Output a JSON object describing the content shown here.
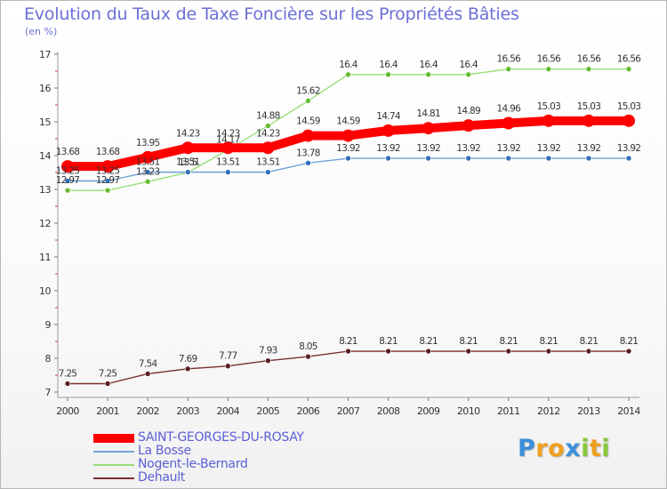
{
  "chart_data": {
    "type": "line",
    "title": "Evolution du Taux de Taxe Foncière sur les Propriétés Bâties",
    "ylabel": "(en %)",
    "xlabel": "",
    "ylim": [
      7,
      17
    ],
    "yticks": [
      7,
      8,
      9,
      10,
      11,
      12,
      13,
      14,
      15,
      16,
      17
    ],
    "x": [
      2000,
      2001,
      2002,
      2003,
      2004,
      2005,
      2006,
      2007,
      2008,
      2009,
      2010,
      2011,
      2012,
      2013,
      2014
    ],
    "grid": false,
    "legend_position": "bottom-left",
    "series": [
      {
        "name": "SAINT-GEORGES-DU-ROSAY",
        "color": "#ff0000",
        "marker_color": "#ff0000",
        "values": [
          13.68,
          13.68,
          13.95,
          14.23,
          14.23,
          14.23,
          14.59,
          14.59,
          14.74,
          14.81,
          14.89,
          14.96,
          15.03,
          15.03,
          15.03
        ],
        "labels": [
          "13.68",
          "13.68",
          "13.95",
          "14.23",
          "14.23",
          "14.23",
          "14.59",
          "14.59",
          "14.74",
          "14.81",
          "14.89",
          "14.96",
          "15.03",
          "15.03",
          "15.03"
        ]
      },
      {
        "name": "La Bosse",
        "color": "#6fa2d6",
        "marker_color": "#2f6fb8",
        "values": [
          13.25,
          13.25,
          13.51,
          13.51,
          13.51,
          13.51,
          13.78,
          13.92,
          13.92,
          13.92,
          13.92,
          13.92,
          13.92,
          13.92,
          13.92
        ],
        "labels": [
          "13.25",
          "13.25",
          "13.51",
          "13.51",
          "13.51",
          "13.51",
          "13.78",
          "13.92",
          "13.92",
          "13.92",
          "13.92",
          "13.92",
          "13.92",
          "13.92",
          "13.92"
        ]
      },
      {
        "name": "Nogent-le-Bernard",
        "color": "#99dd77",
        "marker_color": "#66bb33",
        "values": [
          12.97,
          12.97,
          13.23,
          13.5,
          14.17,
          14.88,
          15.62,
          16.4,
          16.4,
          16.4,
          16.4,
          16.56,
          16.56,
          16.56,
          16.56
        ],
        "labels": [
          "12.97",
          "12.97",
          "13.23",
          "13.5",
          "14.17",
          "14.88",
          "15.62",
          "16.4",
          "16.4",
          "16.4",
          "16.4",
          "16.56",
          "16.56",
          "16.56",
          "16.56"
        ]
      },
      {
        "name": "Dehault",
        "color": "#7a2f2f",
        "marker_color": "#5a1f1f",
        "values": [
          7.25,
          7.25,
          7.54,
          7.69,
          7.77,
          7.93,
          8.05,
          8.21,
          8.21,
          8.21,
          8.21,
          8.21,
          8.21,
          8.21,
          8.21
        ],
        "labels": [
          "7.25",
          "7.25",
          "7.54",
          "7.69",
          "7.77",
          "7.93",
          "8.05",
          "8.21",
          "8.21",
          "8.21",
          "8.21",
          "8.21",
          "8.21",
          "8.21",
          "8.21"
        ]
      }
    ]
  },
  "brand": {
    "letters": [
      "P",
      "r",
      "o",
      "x",
      "i",
      "t",
      "i"
    ],
    "colors": [
      "#3d8fd8",
      "#f0a020",
      "#f0a020",
      "#3d8fd8",
      "#88c83a",
      "#f0a020",
      "#88c83a"
    ]
  }
}
